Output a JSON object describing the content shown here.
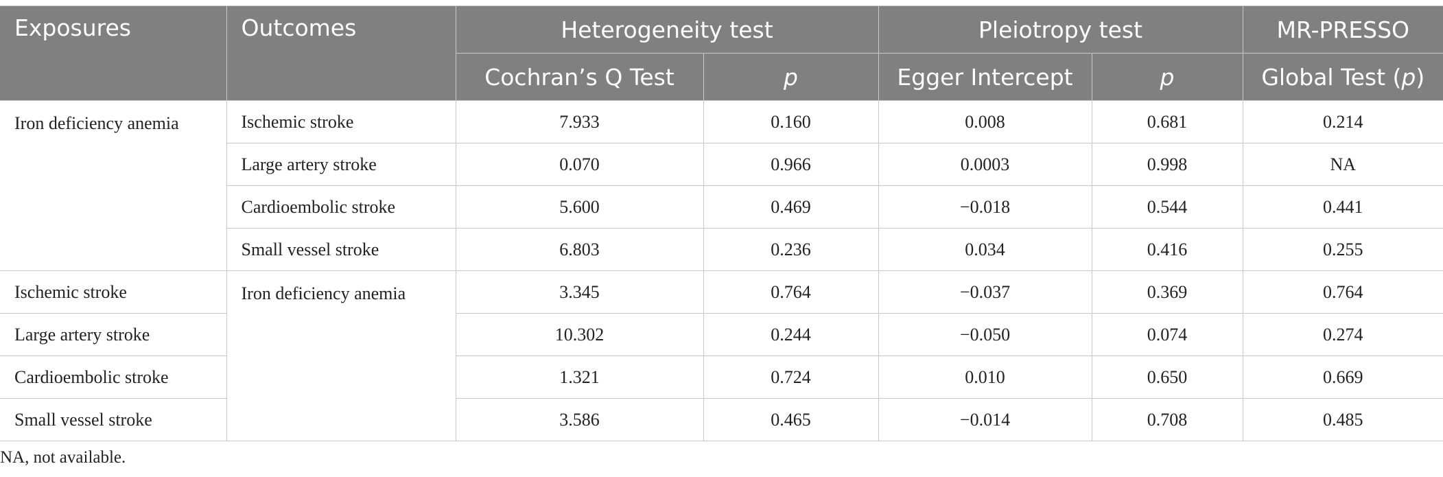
{
  "table": {
    "headers": {
      "exposures": "Exposures",
      "outcomes": "Outcomes",
      "heterogeneity": "Heterogeneity test",
      "pleiotropy": "Pleiotropy test",
      "mrpresso": "MR-PRESSO",
      "cochran": "Cochran’s Q Test",
      "p": "p",
      "egger": "Egger Intercept",
      "global_prefix": "Global Test (",
      "global_p": "p",
      "global_suffix": ")"
    },
    "group1": {
      "exposure": "Iron deficiency anemia",
      "rows": [
        {
          "outcome": "Ischemic stroke",
          "q": "7.933",
          "q_p": "0.160",
          "egger": "0.008",
          "egger_p": "0.681",
          "global_p": "0.214"
        },
        {
          "outcome": "Large artery stroke",
          "q": "0.070",
          "q_p": "0.966",
          "egger": "0.0003",
          "egger_p": "0.998",
          "global_p": "NA"
        },
        {
          "outcome": "Cardioembolic stroke",
          "q": "5.600",
          "q_p": "0.469",
          "egger": "−0.018",
          "egger_p": "0.544",
          "global_p": "0.441"
        },
        {
          "outcome": "Small vessel stroke",
          "q": "6.803",
          "q_p": "0.236",
          "egger": "0.034",
          "egger_p": "0.416",
          "global_p": "0.255"
        }
      ]
    },
    "group2": {
      "outcome": "Iron deficiency anemia",
      "rows": [
        {
          "exposure": "Ischemic stroke",
          "q": "3.345",
          "q_p": "0.764",
          "egger": "−0.037",
          "egger_p": "0.369",
          "global_p": "0.764"
        },
        {
          "exposure": "Large artery stroke",
          "q": "10.302",
          "q_p": "0.244",
          "egger": "−0.050",
          "egger_p": "0.074",
          "global_p": "0.274"
        },
        {
          "exposure": "Cardioembolic stroke",
          "q": "1.321",
          "q_p": "0.724",
          "egger": "0.010",
          "egger_p": "0.650",
          "global_p": "0.669"
        },
        {
          "exposure": "Small vessel stroke",
          "q": "3.586",
          "q_p": "0.465",
          "egger": "−0.014",
          "egger_p": "0.708",
          "global_p": "0.485"
        }
      ]
    }
  },
  "footnote": "NA, not available."
}
